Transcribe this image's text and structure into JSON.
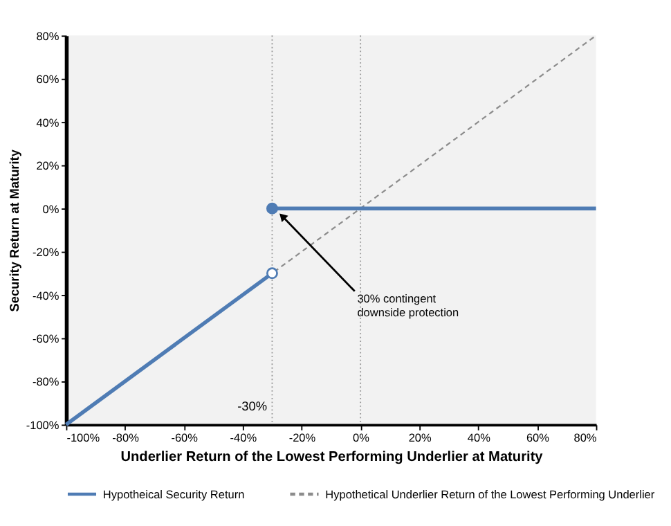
{
  "chart_data": {
    "type": "line",
    "xlabel": "Underlier Return of the Lowest Performing Underlier at Maturity",
    "ylabel": "Security Return at Maturity",
    "series": [
      {
        "name": "Hypotheical Security Return",
        "color": "#4f7cb4",
        "x": [
          -100,
          -30
        ],
        "values": [
          -100,
          -30
        ],
        "line_style": "solid"
      },
      {
        "color": "#4f7cb4",
        "x": [
          -30,
          80
        ],
        "values": [
          0,
          0
        ],
        "line_style": "solid"
      },
      {
        "name": "Hypothetical Underlier Return of the Lowest Performing Underlier",
        "color": "#8c8c8c",
        "x": [
          -100,
          80
        ],
        "values": [
          -100,
          80
        ],
        "line_style": "dashed"
      },
      {
        "type": "scatter",
        "color": "#4f7cb4",
        "x": [
          -30
        ],
        "values": [
          0
        ],
        "marker": "circle"
      },
      {
        "type": "scatter",
        "color": "#ffffff",
        "x": [
          -30
        ],
        "values": [
          -30
        ],
        "marker": "circle"
      }
    ],
    "xlim": [
      -100,
      80
    ],
    "ylim": [
      -100,
      80
    ],
    "xticks": [
      {
        "value": -100,
        "label": "-100%"
      },
      {
        "value": -80,
        "label": "-80%"
      },
      {
        "value": -60,
        "label": "-60%"
      },
      {
        "value": -40,
        "label": "-40%"
      },
      {
        "value": -20,
        "label": "-20%"
      },
      {
        "value": 0,
        "label": "0%"
      },
      {
        "value": 20,
        "label": "20%"
      },
      {
        "value": 40,
        "label": "40%"
      },
      {
        "value": 60,
        "label": "60%"
      },
      {
        "value": 80,
        "label": "80%"
      }
    ],
    "yticks": [
      {
        "value": -100,
        "label": "-100%"
      },
      {
        "value": -80,
        "label": "-80%"
      },
      {
        "value": -60,
        "label": "-60%"
      },
      {
        "value": -40,
        "label": "-40%"
      },
      {
        "value": -20,
        "label": "-20%"
      },
      {
        "value": 0,
        "label": "0%"
      },
      {
        "value": 20,
        "label": "20%"
      },
      {
        "value": 40,
        "label": "40%"
      },
      {
        "value": 60,
        "label": "60%"
      },
      {
        "value": 80,
        "label": "80%"
      }
    ],
    "ref_lines": [
      {
        "axis": "x",
        "value": -30,
        "label": "-30%",
        "color": "#999999",
        "line_style": "dotted"
      },
      {
        "axis": "x",
        "value": 0,
        "color": "#999999",
        "line_style": "dotted"
      }
    ],
    "annotations": [
      {
        "text": "30% contingent\ndownside protection",
        "x": -27,
        "y": -3
      }
    ],
    "grid": false,
    "legend": "bottom"
  }
}
